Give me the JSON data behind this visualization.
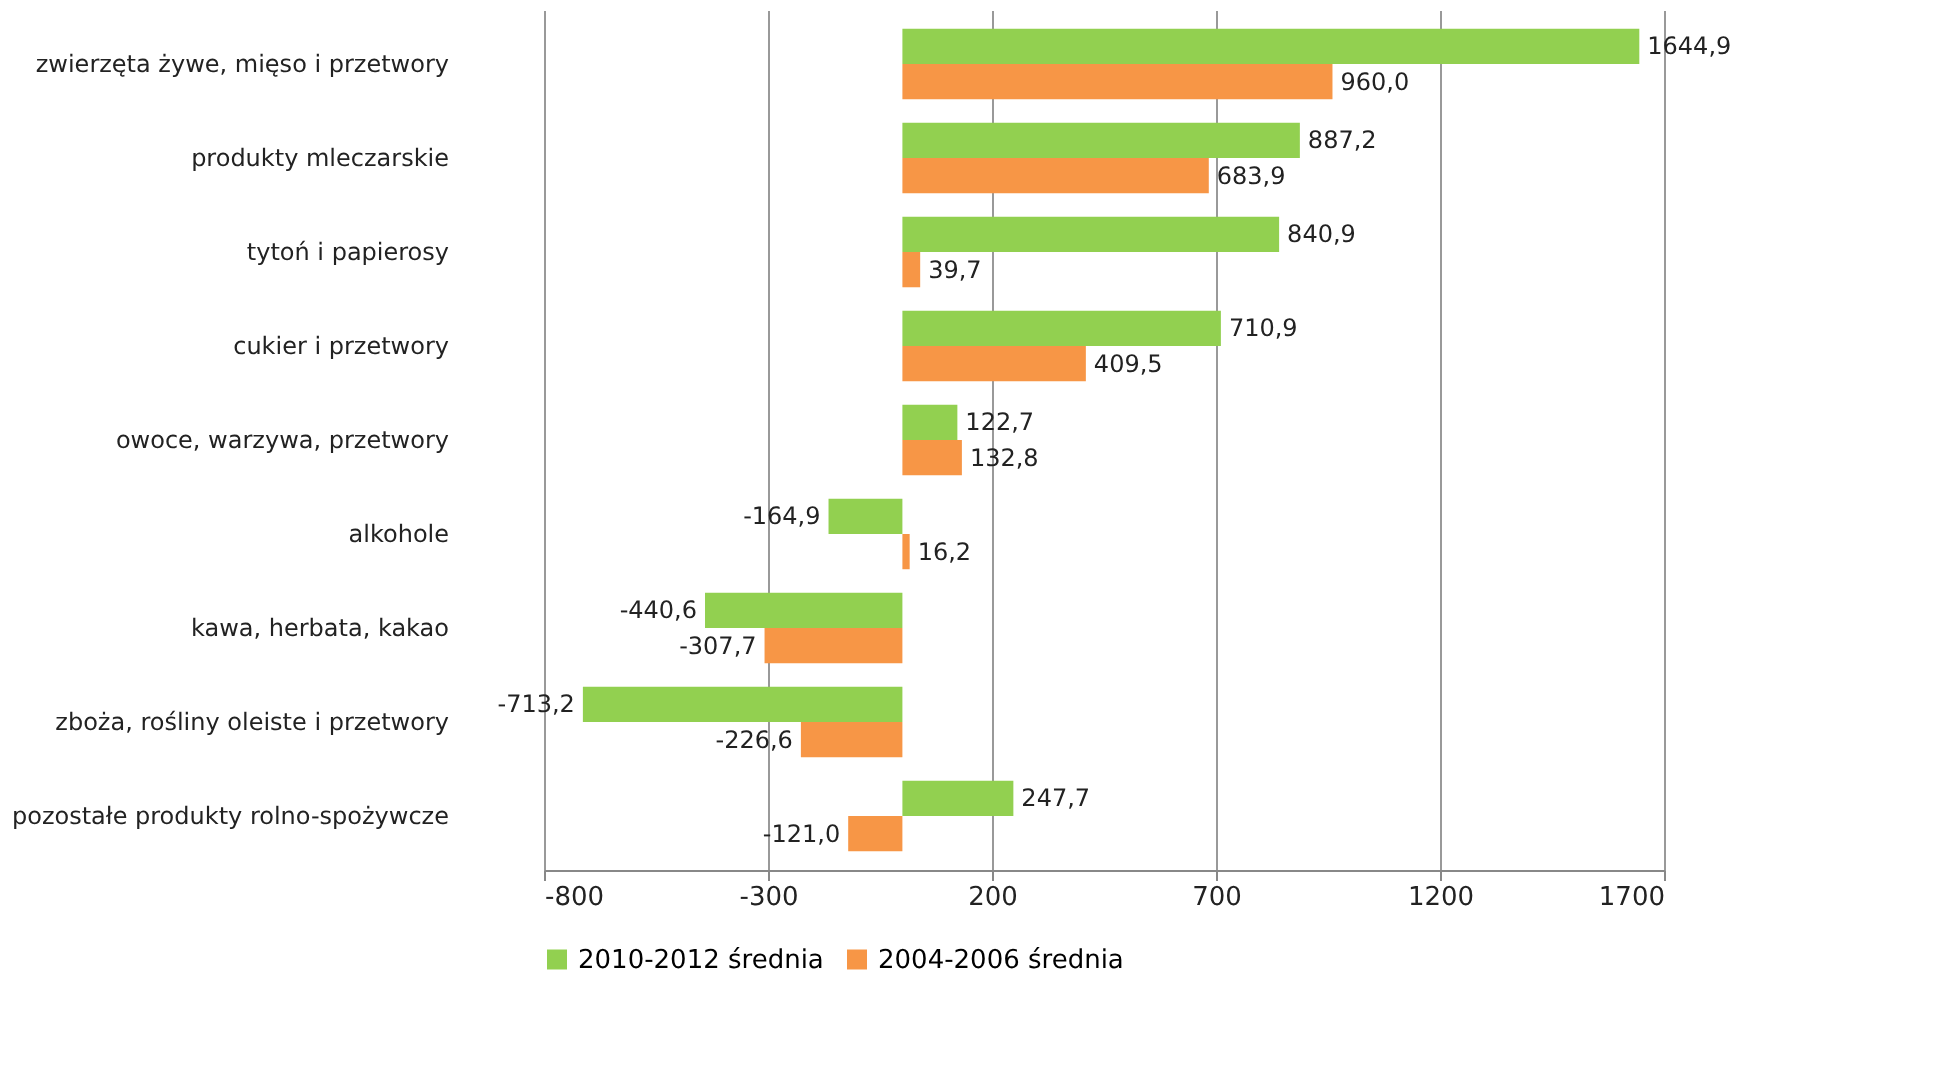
{
  "chart_data": {
    "type": "bar",
    "orientation": "horizontal",
    "categories": [
      "zwierzęta żywe, mięso i przetwory",
      "produkty mleczarskie",
      "tytoń i papierosy",
      "cukier i przetwory",
      "owoce, warzywa, przetwory",
      "alkohole",
      "kawa, herbata, kakao",
      "zboża, rośliny oleiste i przetwory",
      "pozostałe produkty rolno-spożywcze"
    ],
    "series": [
      {
        "name": "2010-2012 średnia",
        "color": "#92d050",
        "values": [
          1644.9,
          887.2,
          840.9,
          710.9,
          122.7,
          -164.9,
          -440.6,
          -713.2,
          247.7
        ],
        "value_labels": [
          "1644,9",
          "887,2",
          "840,9",
          "710,9",
          "122,7",
          "-164,9",
          "-440,6",
          "-713,2",
          "247,7"
        ]
      },
      {
        "name": "2004-2006 średnia",
        "color": "#f79646",
        "values": [
          960.0,
          683.9,
          39.7,
          409.5,
          132.8,
          16.2,
          -307.7,
          -226.6,
          -121.0
        ],
        "value_labels": [
          "960,0",
          "683,9",
          "39,7",
          "409,5",
          "132,8",
          "16,2",
          "-307,7",
          "-226,6",
          "-121,0"
        ]
      }
    ],
    "xlim": [
      -800,
      1700
    ],
    "xticks": [
      -800,
      -300,
      200,
      700,
      1200,
      1700
    ],
    "grid": "x",
    "legend": "bottom"
  }
}
